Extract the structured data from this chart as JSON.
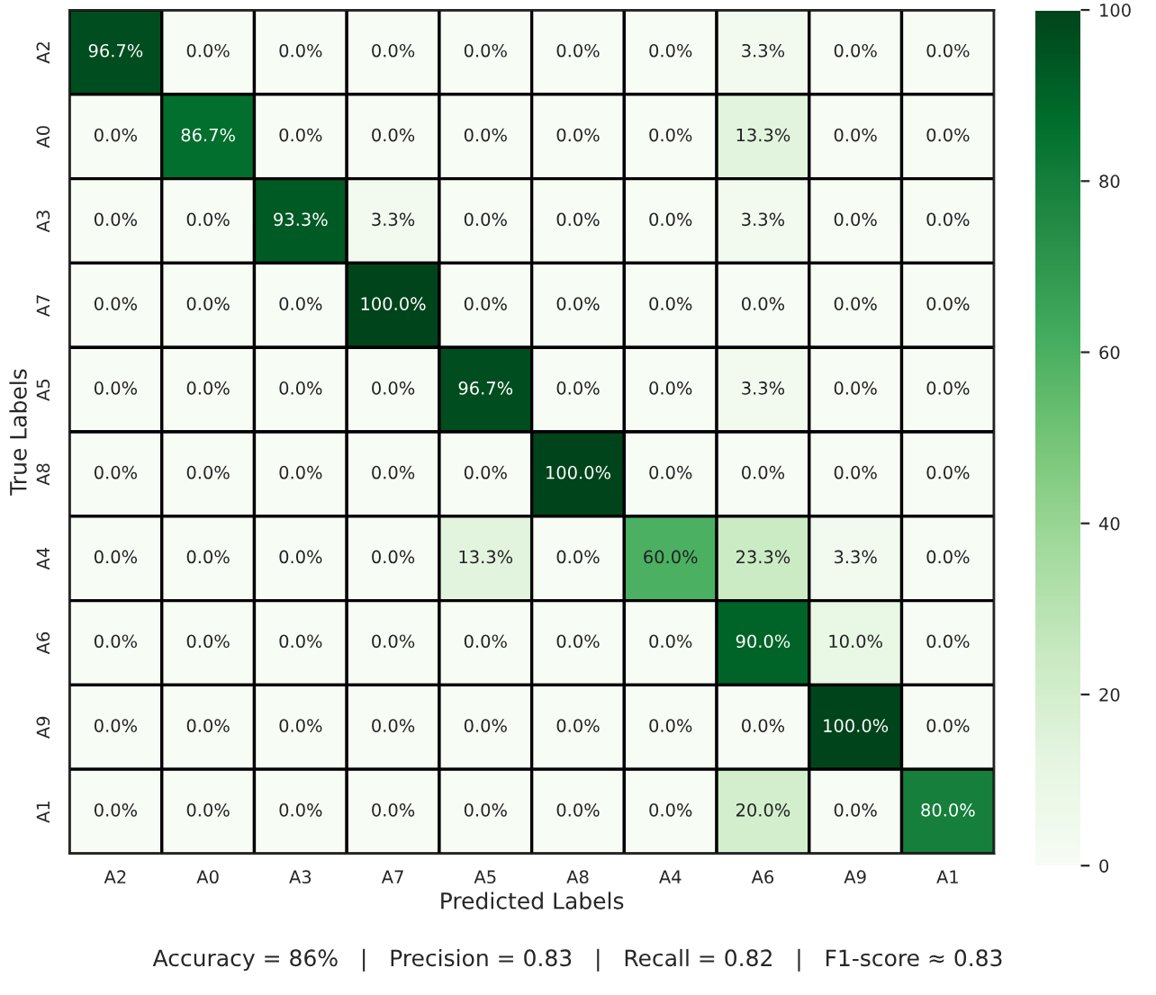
{
  "chart_data": {
    "type": "heatmap",
    "xlabel": "Predicted Labels",
    "ylabel": "True Labels",
    "categories": [
      "A2",
      "A0",
      "A3",
      "A7",
      "A5",
      "A8",
      "A4",
      "A6",
      "A9",
      "A1"
    ],
    "y_categories": [
      "A2",
      "A0",
      "A3",
      "A7",
      "A5",
      "A8",
      "A4",
      "A6",
      "A9",
      "A1"
    ],
    "cells": [
      [
        96.7,
        0.0,
        0.0,
        0.0,
        0.0,
        0.0,
        0.0,
        3.3,
        0.0,
        0.0
      ],
      [
        0.0,
        86.7,
        0.0,
        0.0,
        0.0,
        0.0,
        0.0,
        13.3,
        0.0,
        0.0
      ],
      [
        0.0,
        0.0,
        93.3,
        3.3,
        0.0,
        0.0,
        0.0,
        3.3,
        0.0,
        0.0
      ],
      [
        0.0,
        0.0,
        0.0,
        100.0,
        0.0,
        0.0,
        0.0,
        0.0,
        0.0,
        0.0
      ],
      [
        0.0,
        0.0,
        0.0,
        0.0,
        96.7,
        0.0,
        0.0,
        3.3,
        0.0,
        0.0
      ],
      [
        0.0,
        0.0,
        0.0,
        0.0,
        0.0,
        100.0,
        0.0,
        0.0,
        0.0,
        0.0
      ],
      [
        0.0,
        0.0,
        0.0,
        0.0,
        13.3,
        0.0,
        60.0,
        23.3,
        3.3,
        0.0
      ],
      [
        0.0,
        0.0,
        0.0,
        0.0,
        0.0,
        0.0,
        0.0,
        90.0,
        10.0,
        0.0
      ],
      [
        0.0,
        0.0,
        0.0,
        0.0,
        0.0,
        0.0,
        0.0,
        0.0,
        100.0,
        0.0
      ],
      [
        0.0,
        0.0,
        0.0,
        0.0,
        0.0,
        0.0,
        0.0,
        20.0,
        0.0,
        80.0
      ]
    ],
    "cell_labels": [
      [
        "96.7%",
        "0.0%",
        "0.0%",
        "0.0%",
        "0.0%",
        "0.0%",
        "0.0%",
        "3.3%",
        "0.0%",
        "0.0%"
      ],
      [
        "0.0%",
        "86.7%",
        "0.0%",
        "0.0%",
        "0.0%",
        "0.0%",
        "0.0%",
        "13.3%",
        "0.0%",
        "0.0%"
      ],
      [
        "0.0%",
        "0.0%",
        "93.3%",
        "3.3%",
        "0.0%",
        "0.0%",
        "0.0%",
        "3.3%",
        "0.0%",
        "0.0%"
      ],
      [
        "0.0%",
        "0.0%",
        "0.0%",
        "100.0%",
        "0.0%",
        "0.0%",
        "0.0%",
        "0.0%",
        "0.0%",
        "0.0%"
      ],
      [
        "0.0%",
        "0.0%",
        "0.0%",
        "0.0%",
        "96.7%",
        "0.0%",
        "0.0%",
        "3.3%",
        "0.0%",
        "0.0%"
      ],
      [
        "0.0%",
        "0.0%",
        "0.0%",
        "0.0%",
        "0.0%",
        "100.0%",
        "0.0%",
        "0.0%",
        "0.0%",
        "0.0%"
      ],
      [
        "0.0%",
        "0.0%",
        "0.0%",
        "0.0%",
        "13.3%",
        "0.0%",
        "60.0%",
        "23.3%",
        "3.3%",
        "0.0%"
      ],
      [
        "0.0%",
        "0.0%",
        "0.0%",
        "0.0%",
        "0.0%",
        "0.0%",
        "0.0%",
        "90.0%",
        "10.0%",
        "0.0%"
      ],
      [
        "0.0%",
        "0.0%",
        "0.0%",
        "0.0%",
        "0.0%",
        "0.0%",
        "0.0%",
        "0.0%",
        "100.0%",
        "0.0%"
      ],
      [
        "0.0%",
        "0.0%",
        "0.0%",
        "0.0%",
        "0.0%",
        "0.0%",
        "0.0%",
        "20.0%",
        "0.0%",
        "80.0%"
      ]
    ],
    "clim": [
      0,
      100
    ],
    "cticks": [
      0,
      20,
      40,
      60,
      80,
      100
    ],
    "annotations": [
      "Accuracy = 86%   |   Precision = 0.83   |   Recall = 0.82   |   F1-score ≈ 0.83"
    ]
  }
}
